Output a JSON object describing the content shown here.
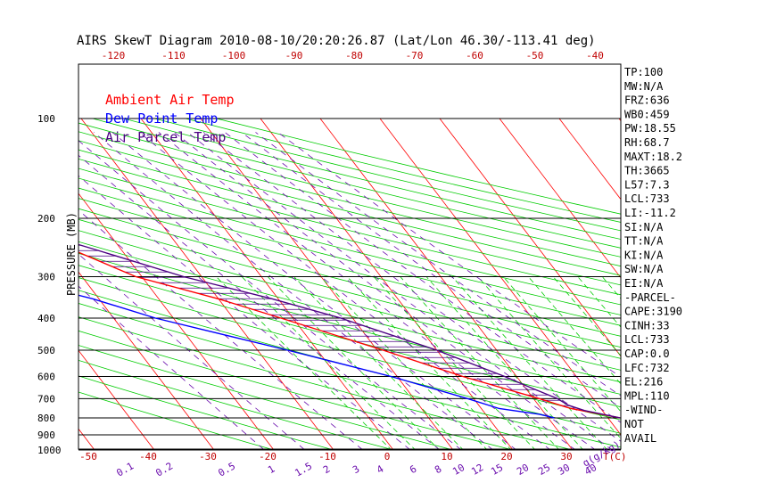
{
  "title": "AIRS SkewT Diagram 2010-08-10/20:20:26.87 (Lat/Lon 46.30/-113.41 deg)",
  "legend": [
    {
      "label": "Ambient Air Temp",
      "color": "#ff0000"
    },
    {
      "label": "Dew Point Temp",
      "color": "#0000ff"
    },
    {
      "label": "Air Parcel Temp",
      "color": "#4b0082"
    }
  ],
  "colors": {
    "ambient": "#ff0000",
    "dewpoint": "#0000ff",
    "parcel": "#4b0082",
    "isotherm": "#ff0000",
    "dry_adiabat": "#00cc00",
    "moist_adiabat": "#00cc00",
    "mixing_ratio": "#6a0dad",
    "frame": "#000000"
  },
  "y_label": "PRESSURE (MB)",
  "pressure_ticks": [
    100,
    200,
    300,
    400,
    500,
    600,
    700,
    800,
    900,
    1000
  ],
  "top_temp_ticks": [
    "-120",
    "-110",
    "-100",
    "-90",
    "-80",
    "-70",
    "-60",
    "-50",
    "-40"
  ],
  "bottom_temp_ticks": [
    "-50",
    "-40",
    "-30",
    "-20",
    "-10",
    "0",
    "10",
    "20",
    "30"
  ],
  "temp_unit": "T(C)",
  "mixing_ratio_labels": [
    "0.1",
    "0.2",
    "0.5",
    "1",
    "1.5",
    "2",
    "3",
    "4",
    "6",
    "8",
    "10",
    "12",
    "15",
    "20",
    "25",
    "30",
    "40"
  ],
  "mixing_ratio_unit": "g(g/kg)",
  "indices": [
    "TP:100",
    "MW:N/A",
    "FRZ:636",
    "WB0:459",
    "PW:18.55",
    "RH:68.7",
    "MAXT:18.2",
    "TH:3665",
    "L57:7.3",
    "LCL:733",
    "LI:-11.2",
    "SI:N/A",
    "TT:N/A",
    "KI:N/A",
    "SW:N/A",
    "EI:N/A",
    "-PARCEL-",
    "CAPE:3190",
    "CINH:33",
    "LCL:733",
    "CAP:0.0",
    "LFC:732",
    "EL:216",
    "MPL:110",
    "-WIND-",
    "NOT",
    "AVAIL"
  ],
  "chart_data": {
    "type": "line",
    "y_scale": "log-pressure",
    "ylim": [
      1050,
      100
    ],
    "series": [
      {
        "name": "Ambient Air Temp",
        "points": [
          [
            800,
            22
          ],
          [
            750,
            15
          ],
          [
            700,
            11
          ],
          [
            600,
            1
          ],
          [
            500,
            -9
          ],
          [
            400,
            -22
          ],
          [
            350,
            -30
          ],
          [
            300,
            -41
          ],
          [
            250,
            -48
          ],
          [
            220,
            -50
          ],
          [
            200,
            -55
          ],
          [
            150,
            -63
          ],
          [
            120,
            -70
          ],
          [
            100,
            -74
          ]
        ]
      },
      {
        "name": "Dew Point Temp",
        "points": [
          [
            800,
            11
          ],
          [
            780,
            9
          ],
          [
            750,
            3
          ],
          [
            700,
            -1
          ],
          [
            600,
            -11
          ],
          [
            500,
            -25
          ],
          [
            400,
            -43
          ],
          [
            350,
            -51
          ],
          [
            300,
            -63
          ],
          [
            250,
            -73
          ],
          [
            200,
            -83
          ],
          [
            150,
            -94
          ],
          [
            120,
            -97
          ],
          [
            100,
            -96
          ]
        ]
      },
      {
        "name": "Air Parcel Temp",
        "points": [
          [
            800,
            22
          ],
          [
            760,
            17
          ],
          [
            733,
            15
          ],
          [
            700,
            14
          ],
          [
            650,
            11
          ],
          [
            600,
            8
          ],
          [
            500,
            0
          ],
          [
            400,
            -12
          ],
          [
            350,
            -21
          ],
          [
            300,
            -33
          ],
          [
            250,
            -44
          ],
          [
            216,
            -53
          ],
          [
            200,
            -58
          ],
          [
            150,
            -72
          ],
          [
            120,
            -82
          ],
          [
            100,
            -90
          ]
        ]
      }
    ]
  }
}
